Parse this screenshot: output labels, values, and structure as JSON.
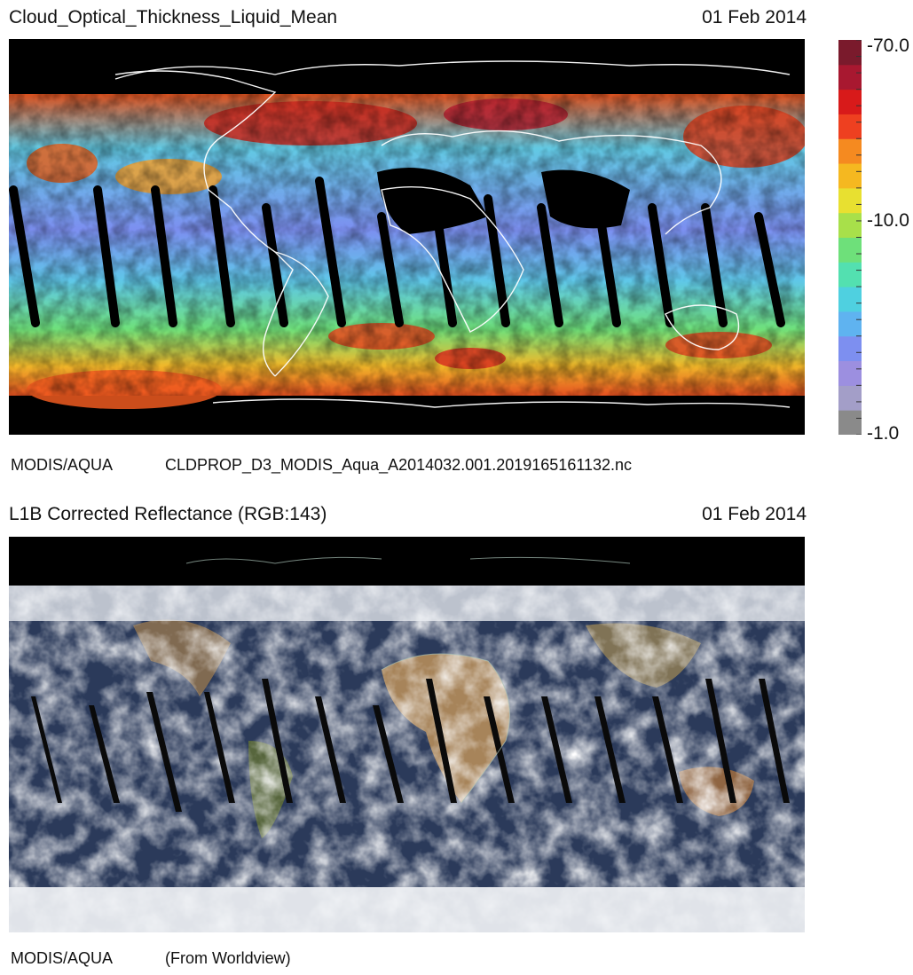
{
  "top_panel": {
    "title": "Cloud_Optical_Thickness_Liquid_Mean",
    "date": "01 Feb 2014",
    "sensor": "MODIS/AQUA",
    "filename": "CLDPROP_D3_MODIS_Aqua_A2014032.001.2019165161132.nc"
  },
  "colorbar": {
    "max_label": "70.0",
    "mid_label": "10.0",
    "min_label": "1.0",
    "scale": "log",
    "colors": [
      "#8a8a8a",
      "#a39ec8",
      "#9c8fe0",
      "#7d8ff0",
      "#5fb3f0",
      "#4fd0e0",
      "#53e0b0",
      "#6ee07a",
      "#a8e04a",
      "#e8e030",
      "#f5b820",
      "#f58a20",
      "#ee4020",
      "#d81a1a",
      "#a81830",
      "#7a1a2c"
    ]
  },
  "bottom_panel": {
    "title": "L1B Corrected Reflectance (RGB:143)",
    "date": "01 Feb 2014",
    "sensor": "MODIS/AQUA",
    "source": "(From Worldview)"
  }
}
